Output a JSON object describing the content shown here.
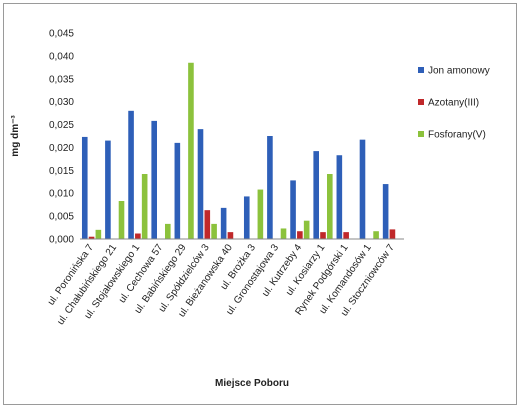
{
  "chart_data": {
    "type": "bar",
    "xlabel": "Miejsce Poboru",
    "ylabel": "mg dm⁻³",
    "ylim": [
      0,
      0.045
    ],
    "yticks": [
      "0,000",
      "0,005",
      "0,010",
      "0,015",
      "0,020",
      "0,025",
      "0,030",
      "0,035",
      "0,040",
      "0,045"
    ],
    "grid": false,
    "legend_position": "right",
    "categories": [
      "ul. Poronińska 7",
      "ul. Chałubińskiego 21",
      "ul. Stojałowskiego 1",
      "ul. Cechowa 57",
      "ul. Babińskiego 29",
      "ul. Spółdzielców 3",
      "ul. Bieżanowska 40",
      "ul. Brożka 3",
      "ul. Gronostajowa 3",
      "ul. Kutrzeby 4",
      "ul. Kosiarzy 1",
      "Rynek Podgórski 1",
      "ul. Komandosów 1",
      "ul. Stoczniowców 7"
    ],
    "series": [
      {
        "name": "Jon amonowy",
        "color": "#2e5fb8",
        "values": [
          0.0223,
          0.0215,
          0.028,
          0.0258,
          0.021,
          0.024,
          0.0068,
          0.0093,
          0.0225,
          0.0128,
          0.0192,
          0.0183,
          0.0217,
          0.012
        ]
      },
      {
        "name": "Azotany(III)",
        "color": "#c0282a",
        "values": [
          0.0005,
          0.0,
          0.0012,
          0.0,
          0.0,
          0.0063,
          0.0015,
          0.0,
          0.0,
          0.0017,
          0.0015,
          0.0015,
          0.0,
          0.0021
        ]
      },
      {
        "name": "Fosforany(V)",
        "color": "#8cc23c",
        "values": [
          0.002,
          0.0083,
          0.0142,
          0.0033,
          0.0385,
          0.0033,
          0.0,
          0.0108,
          0.0023,
          0.004,
          0.0142,
          0.0,
          0.0017,
          0.0
        ]
      }
    ]
  }
}
